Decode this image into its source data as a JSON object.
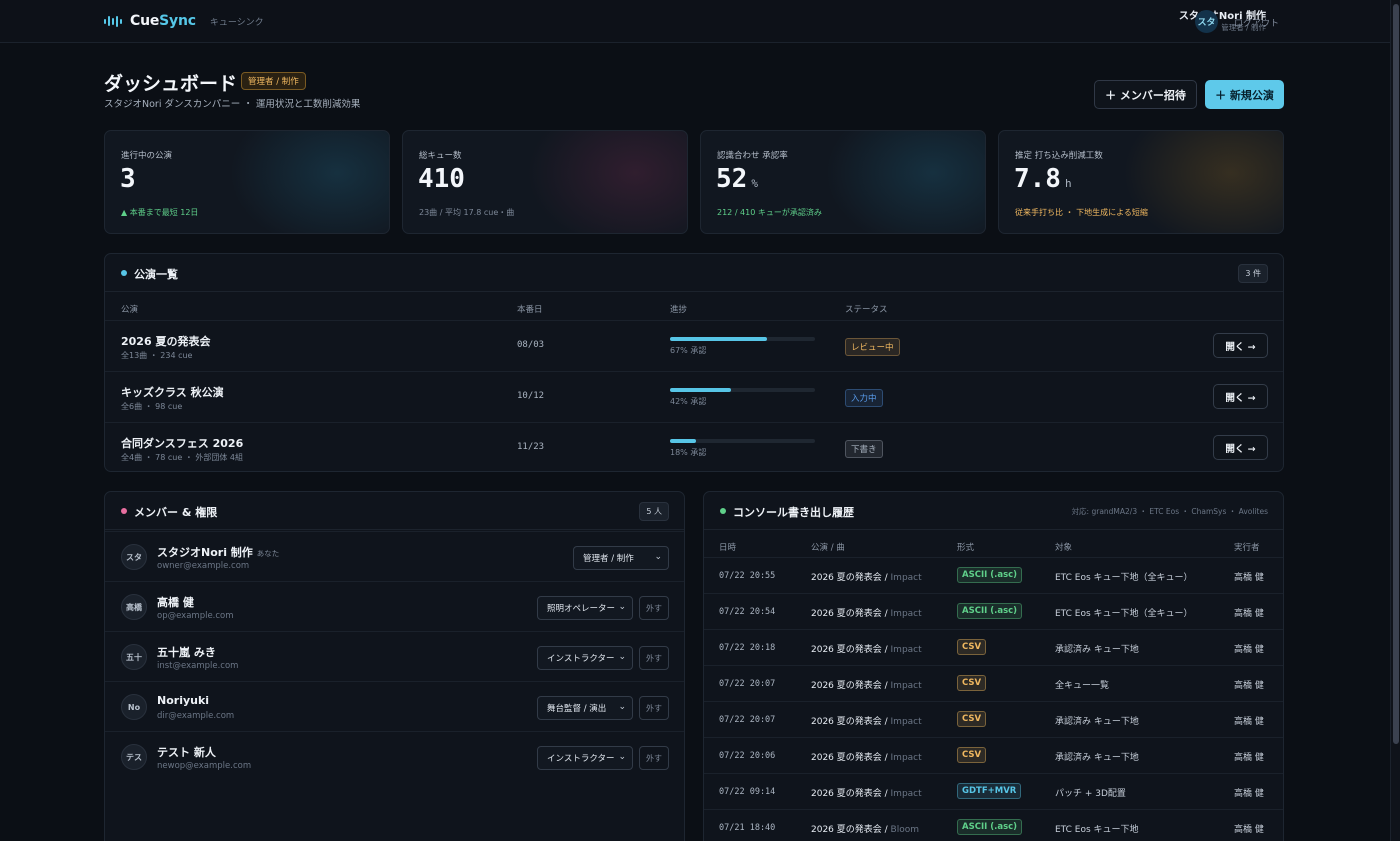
{
  "app": {
    "name_a": "Cue",
    "name_b": "Sync",
    "subtitle": "キューシンク"
  },
  "user": {
    "name": "スタジオNori 制作",
    "role": "管理者 / 制作",
    "avatar": "スタ",
    "logout": "ログアウト"
  },
  "header": {
    "title": "ダッシュボード",
    "role_badge": "管理者 / 制作",
    "subtitle": "スタジオNori ダンスカンパニー ・ 運用状況と工数削減効果",
    "invite_label": "＋ メンバー招待",
    "new_label": "＋ 新規公演"
  },
  "kpis": [
    {
      "label": "進行中の公演",
      "value": "3",
      "unit": "",
      "note": "▲ 本番まで最短 12日",
      "note_color": "#5fd08a",
      "glow": "#1f5f7a"
    },
    {
      "label": "総キュー数",
      "value": "410",
      "unit": "",
      "note": "23曲 / 平均 17.8 cue・曲",
      "note_color": "#7d8898",
      "glow": "#6a2a4a"
    },
    {
      "label": "認識合わせ 承認率",
      "value": "52",
      "unit": "%",
      "note": "212 / 410 キューが承認済み",
      "note_color": "#5fd08a",
      "glow": "#1f5f7a"
    },
    {
      "label": "推定 打ち込み削減工数",
      "value": "7.8",
      "unit": "h",
      "note": "従来手打ち比 ・ 下地生成による短縮",
      "note_color": "#f0b860",
      "glow": "#7a5a22"
    }
  ],
  "performances": {
    "title": "公演一覧",
    "dot_color": "#57c5e6",
    "count": "3 件",
    "columns": {
      "name": "公演",
      "date": "本番日",
      "progress": "進捗",
      "status": "ステータス"
    },
    "open_label": "開く →",
    "rows": [
      {
        "name": "2026 夏の発表会",
        "sub": "全13曲 ・ 234 cue",
        "date": "08/03",
        "progress": 0.67,
        "progress_text": "67% 承認",
        "status": "レビュー中",
        "status_color": "#f0b860"
      },
      {
        "name": "キッズクラス 秋公演",
        "sub": "全6曲 ・ 98 cue",
        "date": "10/12",
        "progress": 0.42,
        "progress_text": "42% 承認",
        "status": "入力中",
        "status_color": "#5a9ef0"
      },
      {
        "name": "合同ダンスフェス 2026",
        "sub": "全4曲 ・ 78 cue ・ 外部団体 4組",
        "date": "11/23",
        "progress": 0.18,
        "progress_text": "18% 承認",
        "status": "下書き",
        "status_color": "#aab4c1"
      }
    ]
  },
  "members": {
    "title": "メンバー & 権限",
    "dot_color": "#e86fa0",
    "count": "5 人",
    "remove_label": "外す",
    "rows": [
      {
        "avatar": "スタ",
        "name": "スタジオNori 制作",
        "you": "あなた",
        "email": "owner@example.com",
        "role": "管理者 / 制作"
      },
      {
        "avatar": "高橋",
        "name": "高橋 健",
        "you": "",
        "email": "op@example.com",
        "role": "照明オペレーター"
      },
      {
        "avatar": "五十",
        "name": "五十嵐 みき",
        "you": "",
        "email": "inst@example.com",
        "role": "インストラクター"
      },
      {
        "avatar": "No",
        "name": "Noriyuki",
        "you": "",
        "email": "dir@example.com",
        "role": "舞台監督 / 演出"
      },
      {
        "avatar": "テス",
        "name": "テスト 新人",
        "you": "",
        "email": "newop@example.com",
        "role": "インストラクター"
      }
    ]
  },
  "exports": {
    "title": "コンソール書き出し履歴",
    "dot_color": "#5fd08a",
    "supported": "対応: grandMA2/3 ・ ETC Eos ・ ChamSys ・ Avolites",
    "columns": {
      "time": "日時",
      "show": "公演 / 曲",
      "format": "形式",
      "target": "対象",
      "user": "実行者"
    },
    "format_colors": {
      "ASCII (.asc)": "#5fd08a",
      "CSV": "#f0b860",
      "GDTF+MVR": "#57c5e6"
    },
    "rows": [
      {
        "time": "07/22 20:55",
        "show": "2026 夏の発表会",
        "song": "Impact",
        "format": "ASCII (.asc)",
        "target": "ETC Eos キュー下地（全キュー）",
        "user": "高橋 健"
      },
      {
        "time": "07/22 20:54",
        "show": "2026 夏の発表会",
        "song": "Impact",
        "format": "ASCII (.asc)",
        "target": "ETC Eos キュー下地（全キュー）",
        "user": "高橋 健"
      },
      {
        "time": "07/22 20:18",
        "show": "2026 夏の発表会",
        "song": "Impact",
        "format": "CSV",
        "target": "承認済み キュー下地",
        "user": "高橋 健"
      },
      {
        "time": "07/22 20:07",
        "show": "2026 夏の発表会",
        "song": "Impact",
        "format": "CSV",
        "target": "全キュー一覧",
        "user": "高橋 健"
      },
      {
        "time": "07/22 20:07",
        "show": "2026 夏の発表会",
        "song": "Impact",
        "format": "CSV",
        "target": "承認済み キュー下地",
        "user": "高橋 健"
      },
      {
        "time": "07/22 20:06",
        "show": "2026 夏の発表会",
        "song": "Impact",
        "format": "CSV",
        "target": "承認済み キュー下地",
        "user": "高橋 健"
      },
      {
        "time": "07/22 09:14",
        "show": "2026 夏の発表会",
        "song": "Impact",
        "format": "GDTF+MVR",
        "target": "パッチ + 3D配置",
        "user": "高橋 健"
      },
      {
        "time": "07/21 18:40",
        "show": "2026 夏の発表会",
        "song": "Bloom",
        "format": "ASCII (.asc)",
        "target": "ETC Eos キュー下地",
        "user": "高橋 健"
      }
    ]
  }
}
